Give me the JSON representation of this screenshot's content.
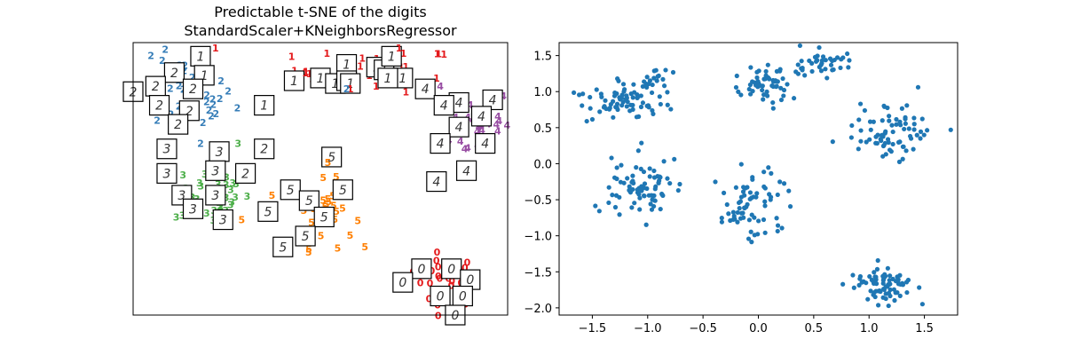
{
  "colors": {
    "cluster_0": "#e41a1c",
    "cluster_1": "#e41a1c",
    "cluster_2": "#377eb8",
    "cluster_3": "#4daf4a",
    "cluster_4": "#984ea3",
    "cluster_5": "#ff7f00",
    "scatter": "#1f77b4"
  },
  "chart_data": [
    {
      "type": "scatter",
      "title": "Predictable t-SNE of the digits\nStandardScaler+KNeighborsRegressor",
      "title_lines": [
        "Predictable t-SNE of the digits",
        "StandardScaler+KNeighborsRegressor"
      ],
      "xlabel": "",
      "ylabel": "",
      "axes_ticks": "none",
      "xlim": [
        0,
        100
      ],
      "ylim": [
        0,
        100
      ],
      "grid": false,
      "clusters": [
        {
          "label": "0",
          "center": [
            83,
            13
          ],
          "spread": [
            5,
            5
          ],
          "count": 28
        },
        {
          "label": "1",
          "center": [
            65,
            90
          ],
          "spread": [
            11,
            4
          ],
          "count": 32
        },
        {
          "label": "2",
          "center": [
            13,
            80
          ],
          "spread": [
            7,
            7
          ],
          "count": 45
        },
        {
          "label": "3",
          "center": [
            21,
            45
          ],
          "spread": [
            5,
            6
          ],
          "count": 38
        },
        {
          "label": "4",
          "center": [
            93,
            70
          ],
          "spread": [
            4,
            7
          ],
          "count": 30
        },
        {
          "label": "5",
          "center": [
            51,
            37
          ],
          "spread": [
            4,
            6
          ],
          "count": 32
        }
      ],
      "thumbnails": [
        {
          "digit": "1",
          "x": 18,
          "y": 95
        },
        {
          "digit": "1",
          "x": 19,
          "y": 88
        },
        {
          "digit": "1",
          "x": 50,
          "y": 87
        },
        {
          "digit": "1",
          "x": 43,
          "y": 86
        },
        {
          "digit": "1",
          "x": 54,
          "y": 85
        },
        {
          "digit": "1",
          "x": 57,
          "y": 92
        },
        {
          "digit": "1",
          "x": 57,
          "y": 86
        },
        {
          "digit": "1",
          "x": 58,
          "y": 85
        },
        {
          "digit": "1",
          "x": 65,
          "y": 91
        },
        {
          "digit": "1",
          "x": 67,
          "y": 90
        },
        {
          "digit": "1",
          "x": 72,
          "y": 87
        },
        {
          "digit": "1",
          "x": 68,
          "y": 87
        },
        {
          "digit": "1",
          "x": 69,
          "y": 95
        },
        {
          "digit": "1",
          "x": 35,
          "y": 77
        },
        {
          "digit": "2",
          "x": 11,
          "y": 89
        },
        {
          "digit": "2",
          "x": 6,
          "y": 84
        },
        {
          "digit": "2",
          "x": 0,
          "y": 82
        },
        {
          "digit": "2",
          "x": 16,
          "y": 83
        },
        {
          "digit": "2",
          "x": 7,
          "y": 77
        },
        {
          "digit": "2",
          "x": 15,
          "y": 75
        },
        {
          "digit": "2",
          "x": 12,
          "y": 70
        },
        {
          "digit": "2",
          "x": 35,
          "y": 61
        },
        {
          "digit": "2",
          "x": 30,
          "y": 52
        },
        {
          "digit": "3",
          "x": 9,
          "y": 61
        },
        {
          "digit": "3",
          "x": 23,
          "y": 60
        },
        {
          "digit": "3",
          "x": 9,
          "y": 52
        },
        {
          "digit": "3",
          "x": 22,
          "y": 53
        },
        {
          "digit": "3",
          "x": 22,
          "y": 44
        },
        {
          "digit": "3",
          "x": 13,
          "y": 44
        },
        {
          "digit": "3",
          "x": 16,
          "y": 39
        },
        {
          "digit": "3",
          "x": 24,
          "y": 35
        },
        {
          "digit": "4",
          "x": 78,
          "y": 83
        },
        {
          "digit": "4",
          "x": 87,
          "y": 78
        },
        {
          "digit": "4",
          "x": 83,
          "y": 77
        },
        {
          "digit": "4",
          "x": 96,
          "y": 79
        },
        {
          "digit": "4",
          "x": 87,
          "y": 69
        },
        {
          "digit": "4",
          "x": 93,
          "y": 73
        },
        {
          "digit": "4",
          "x": 82,
          "y": 63
        },
        {
          "digit": "4",
          "x": 94,
          "y": 63
        },
        {
          "digit": "4",
          "x": 81,
          "y": 49
        },
        {
          "digit": "4",
          "x": 89,
          "y": 53
        },
        {
          "digit": "5",
          "x": 53,
          "y": 58
        },
        {
          "digit": "5",
          "x": 42,
          "y": 46
        },
        {
          "digit": "5",
          "x": 47,
          "y": 42
        },
        {
          "digit": "5",
          "x": 56,
          "y": 46
        },
        {
          "digit": "5",
          "x": 36,
          "y": 38
        },
        {
          "digit": "5",
          "x": 51,
          "y": 36
        },
        {
          "digit": "5",
          "x": 46,
          "y": 29
        },
        {
          "digit": "5",
          "x": 40,
          "y": 25
        },
        {
          "digit": "0",
          "x": 77,
          "y": 17
        },
        {
          "digit": "0",
          "x": 85,
          "y": 17
        },
        {
          "digit": "0",
          "x": 90,
          "y": 13
        },
        {
          "digit": "0",
          "x": 72,
          "y": 12
        },
        {
          "digit": "0",
          "x": 82,
          "y": 7
        },
        {
          "digit": "0",
          "x": 88,
          "y": 7
        },
        {
          "digit": "0",
          "x": 86,
          "y": 0
        }
      ],
      "labels": [
        {
          "digit": "1",
          "x": 22,
          "y": 98
        },
        {
          "digit": "1",
          "x": 46,
          "y": 89
        },
        {
          "digit": "1",
          "x": 71,
          "y": 98
        },
        {
          "digit": "1",
          "x": 58,
          "y": 83
        },
        {
          "digit": "2",
          "x": 18,
          "y": 63
        },
        {
          "digit": "2",
          "x": 57,
          "y": 83
        },
        {
          "digit": "3",
          "x": 28,
          "y": 63
        },
        {
          "digit": "4",
          "x": 82,
          "y": 84
        },
        {
          "digit": "4",
          "x": 97,
          "y": 70
        },
        {
          "digit": "5",
          "x": 52,
          "y": 56
        },
        {
          "digit": "5",
          "x": 29,
          "y": 35
        }
      ]
    },
    {
      "type": "scatter",
      "title": "",
      "xlabel": "",
      "ylabel": "",
      "xlim": [
        -1.8,
        1.8
      ],
      "ylim": [
        -2.1,
        1.68
      ],
      "xticks": [
        -1.5,
        -1.0,
        -0.5,
        0.0,
        0.5,
        1.0,
        1.5
      ],
      "xtick_labels": [
        "−1.5",
        "−1.0",
        "−0.5",
        "0.0",
        "0.5",
        "1.0",
        "1.5"
      ],
      "yticks": [
        -2.0,
        -1.5,
        -1.0,
        -0.5,
        0.0,
        0.5,
        1.0,
        1.5
      ],
      "ytick_labels": [
        "−2.0",
        "−1.5",
        "−1.0",
        "−0.5",
        "0.0",
        "0.5",
        "1.0",
        "1.5"
      ],
      "grid": false,
      "clusters": [
        {
          "center": [
            -1.25,
            0.85
          ],
          "spread": [
            0.2,
            0.15
          ],
          "count": 70
        },
        {
          "center": [
            -0.95,
            1.1
          ],
          "spread": [
            0.08,
            0.15
          ],
          "count": 20
        },
        {
          "center": [
            0.05,
            1.1
          ],
          "spread": [
            0.12,
            0.12
          ],
          "count": 55
        },
        {
          "center": [
            0.55,
            1.4
          ],
          "spread": [
            0.14,
            0.09
          ],
          "count": 40
        },
        {
          "center": [
            1.25,
            0.45
          ],
          "spread": [
            0.2,
            0.25
          ],
          "count": 75
        },
        {
          "center": [
            -1.05,
            -0.35
          ],
          "spread": [
            0.17,
            0.22
          ],
          "count": 80
        },
        {
          "center": [
            -0.05,
            -0.6
          ],
          "spread": [
            0.18,
            0.25
          ],
          "count": 70
        },
        {
          "center": [
            1.15,
            -1.7
          ],
          "spread": [
            0.13,
            0.13
          ],
          "count": 75
        }
      ]
    }
  ]
}
